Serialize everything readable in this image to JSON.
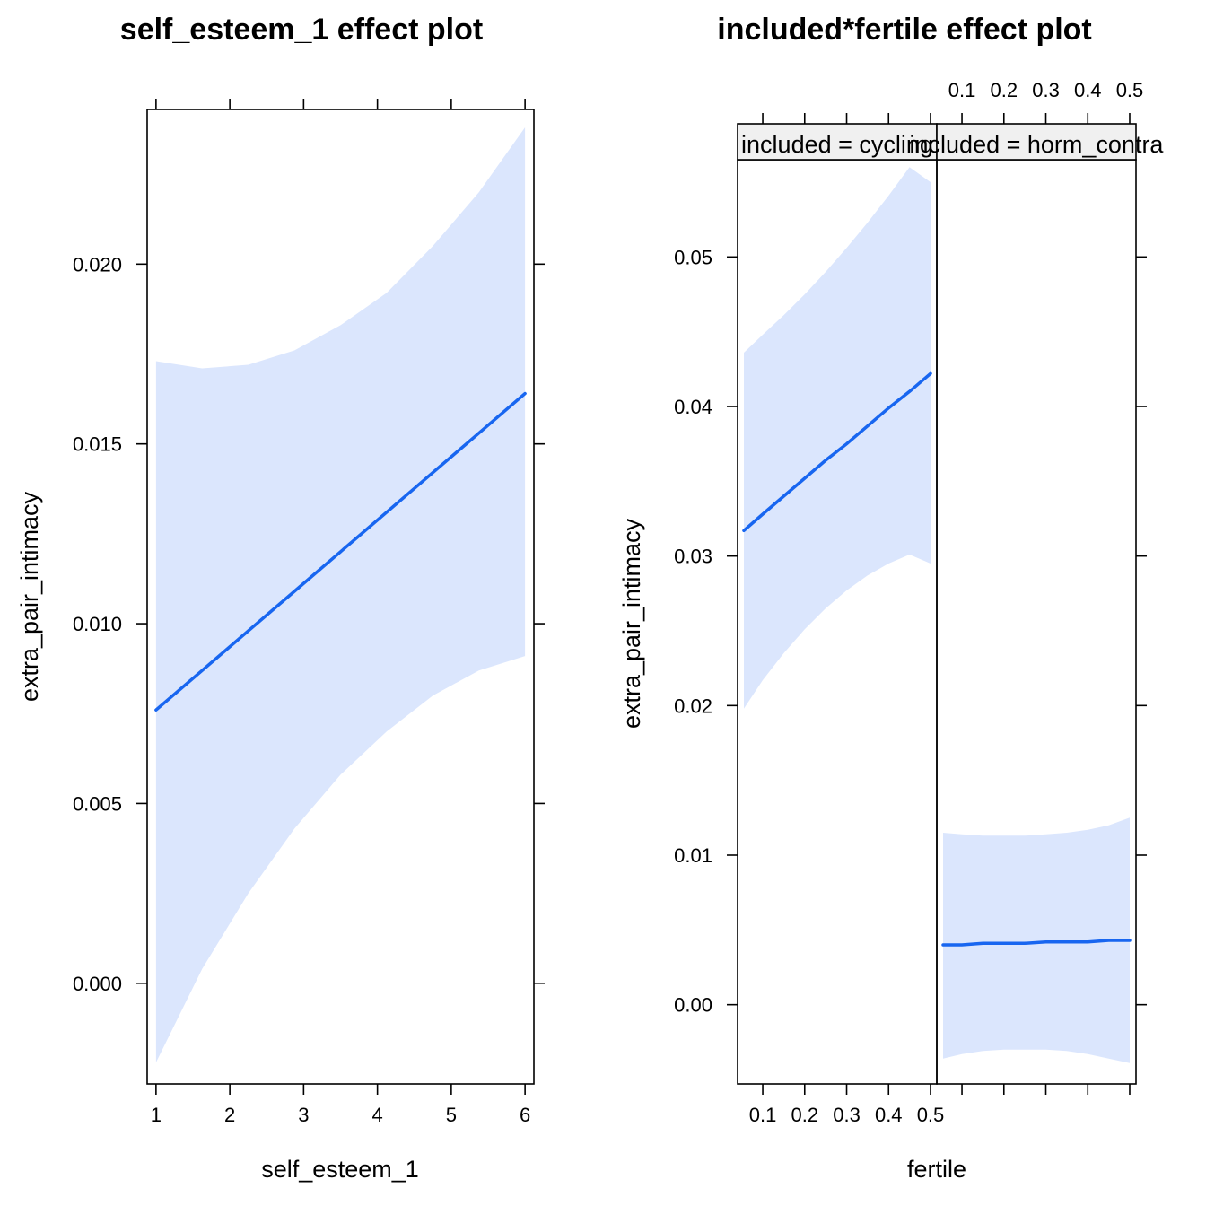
{
  "chart_data": [
    {
      "type": "line",
      "title": "self_esteem_1 effect plot",
      "xlabel": "self_esteem_1",
      "ylabel": "extra_pair_intimacy",
      "xlim": [
        0.88,
        6.12
      ],
      "ylim": [
        -0.0028,
        0.0243
      ],
      "x_ticks": [
        1,
        2,
        3,
        4,
        5,
        6
      ],
      "x_tick_labels": [
        "1",
        "2",
        "3",
        "4",
        "5",
        "6"
      ],
      "y_ticks": [
        0,
        0.005,
        0.01,
        0.015,
        0.02
      ],
      "y_tick_labels": [
        "0.000",
        "0.005",
        "0.010",
        "0.015",
        "0.020"
      ],
      "grid": false,
      "series": [
        {
          "x": [
            1,
            1.625,
            2.25,
            2.875,
            3.5,
            4.125,
            4.75,
            5.375,
            6
          ],
          "fit": [
            0.0076,
            0.0087,
            0.0098,
            0.0109,
            0.012,
            0.0131,
            0.0142,
            0.0153,
            0.0164
          ],
          "lower": [
            -0.0022,
            0.0004,
            0.0025,
            0.0043,
            0.0058,
            0.007,
            0.008,
            0.0087,
            0.0091
          ],
          "upper": [
            0.0173,
            0.0171,
            0.0172,
            0.0176,
            0.0183,
            0.0192,
            0.0205,
            0.022,
            0.0238
          ]
        }
      ]
    },
    {
      "type": "line",
      "title": "included*fertile effect plot",
      "xlabel": "fertile",
      "ylabel": "extra_pair_intimacy",
      "xlim": [
        0.04,
        0.515
      ],
      "ylim": [
        -0.0053,
        0.0565
      ],
      "x_ticks": [
        0.1,
        0.2,
        0.3,
        0.4,
        0.5
      ],
      "x_tick_labels": [
        "0.1",
        "0.2",
        "0.3",
        "0.4",
        "0.5"
      ],
      "y_ticks": [
        0,
        0.01,
        0.02,
        0.03,
        0.04,
        0.05
      ],
      "y_tick_labels": [
        "0.00",
        "0.01",
        "0.02",
        "0.03",
        "0.04",
        "0.05"
      ],
      "grid": false,
      "panels": [
        {
          "strip": "included = cycling",
          "x": [
            0.055,
            0.1,
            0.15,
            0.2,
            0.25,
            0.3,
            0.35,
            0.4,
            0.45,
            0.5
          ],
          "fit": [
            0.0317,
            0.0328,
            0.034,
            0.0352,
            0.0364,
            0.0375,
            0.0387,
            0.0399,
            0.041,
            0.0422
          ],
          "lower": [
            0.0198,
            0.0217,
            0.0235,
            0.0251,
            0.0265,
            0.0277,
            0.0287,
            0.0295,
            0.0301,
            0.0295
          ],
          "upper": [
            0.0436,
            0.0448,
            0.0461,
            0.0475,
            0.049,
            0.0506,
            0.0523,
            0.0541,
            0.056,
            0.055
          ]
        },
        {
          "strip": "included = horm_contra",
          "x": [
            0.055,
            0.1,
            0.15,
            0.2,
            0.25,
            0.3,
            0.35,
            0.4,
            0.45,
            0.5
          ],
          "fit": [
            0.004,
            0.004,
            0.0041,
            0.0041,
            0.0041,
            0.0042,
            0.0042,
            0.0042,
            0.0043,
            0.0043
          ],
          "lower": [
            -0.0036,
            -0.0033,
            -0.0031,
            -0.003,
            -0.003,
            -0.003,
            -0.0031,
            -0.0033,
            -0.0036,
            -0.0039
          ],
          "upper": [
            0.0115,
            0.0114,
            0.0113,
            0.0113,
            0.0113,
            0.0114,
            0.0115,
            0.0117,
            0.012,
            0.0125
          ]
        }
      ]
    }
  ]
}
